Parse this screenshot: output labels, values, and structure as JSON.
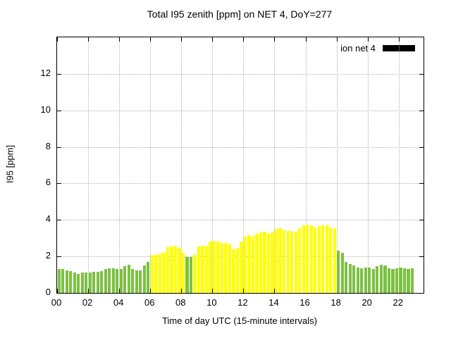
{
  "chart_data": {
    "type": "bar",
    "title": "Total I95 zenith [ppm] on NET 4, DoY=277",
    "xlabel": "Time of day UTC (15-minute intervals)",
    "ylabel": "I95 [ppm]",
    "legend_label": "ion net 4",
    "ylim": [
      0,
      14
    ],
    "xlim_hours": [
      0,
      23.6
    ],
    "y_ticks": [
      0,
      2,
      4,
      6,
      8,
      10,
      12
    ],
    "x_tick_hours": [
      0,
      2,
      4,
      6,
      8,
      10,
      12,
      14,
      16,
      18,
      20,
      22
    ],
    "x_tick_labels": [
      "00",
      "02",
      "04",
      "06",
      "08",
      "10",
      "12",
      "14",
      "16",
      "18",
      "20",
      "22"
    ],
    "interval_hours": 0.25,
    "x_start_hour": 0,
    "grid": "dotted",
    "legend_position": "top-right",
    "colors": {
      "green": "#7cc142",
      "yellow": "#ffff00",
      "legend": "#000000"
    },
    "values": [
      1.3,
      1.3,
      1.25,
      1.2,
      1.1,
      1.05,
      1.1,
      1.1,
      1.1,
      1.15,
      1.15,
      1.2,
      1.3,
      1.35,
      1.35,
      1.3,
      1.3,
      1.45,
      1.55,
      1.3,
      1.25,
      1.25,
      1.5,
      1.7,
      2.1,
      2.1,
      2.15,
      2.2,
      2.5,
      2.55,
      2.6,
      2.45,
      2.2,
      1.95,
      1.95,
      2.1,
      2.55,
      2.6,
      2.6,
      2.8,
      2.85,
      2.8,
      2.75,
      2.75,
      2.7,
      2.4,
      2.45,
      2.8,
      3.1,
      3.15,
      3.1,
      3.25,
      3.3,
      3.35,
      3.25,
      3.3,
      3.5,
      3.55,
      3.45,
      3.4,
      3.4,
      3.35,
      3.55,
      3.7,
      3.75,
      3.7,
      3.6,
      3.65,
      3.7,
      3.75,
      3.6,
      3.55,
      2.3,
      2.2,
      1.7,
      1.6,
      1.5,
      1.4,
      1.35,
      1.4,
      1.4,
      1.3,
      1.45,
      1.55,
      1.5,
      1.35,
      1.3,
      1.35,
      1.4,
      1.35,
      1.3,
      1.35
    ],
    "bar_colors": [
      "g",
      "g",
      "g",
      "g",
      "g",
      "g",
      "g",
      "g",
      "g",
      "g",
      "g",
      "g",
      "g",
      "g",
      "g",
      "g",
      "g",
      "g",
      "g",
      "g",
      "g",
      "g",
      "g",
      "g",
      "y",
      "y",
      "y",
      "y",
      "y",
      "y",
      "y",
      "y",
      "y",
      "g",
      "g",
      "y",
      "y",
      "y",
      "y",
      "y",
      "y",
      "y",
      "y",
      "y",
      "y",
      "y",
      "y",
      "y",
      "y",
      "y",
      "y",
      "y",
      "y",
      "y",
      "y",
      "y",
      "y",
      "y",
      "y",
      "y",
      "y",
      "y",
      "y",
      "y",
      "y",
      "y",
      "y",
      "y",
      "y",
      "y",
      "y",
      "y",
      "g",
      "g",
      "g",
      "g",
      "g",
      "g",
      "g",
      "g",
      "g",
      "g",
      "g",
      "g",
      "g",
      "g",
      "g",
      "g",
      "g",
      "g",
      "g",
      "g"
    ]
  }
}
